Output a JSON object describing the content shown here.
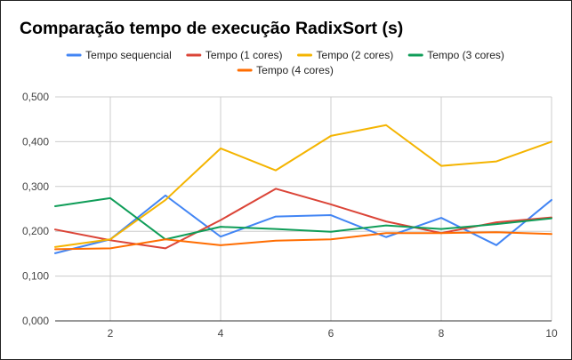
{
  "chart_data": {
    "type": "line",
    "title": "Comparação tempo de execução RadixSort (s)",
    "xlabel": "",
    "ylabel": "",
    "x": [
      1,
      2,
      3,
      4,
      5,
      6,
      7,
      8,
      9,
      10
    ],
    "xlim": [
      1,
      10
    ],
    "ylim": [
      0,
      0.5
    ],
    "xticks": [
      2,
      4,
      6,
      8,
      10
    ],
    "yticks": [
      0,
      0.1,
      0.2,
      0.3,
      0.4,
      0.5
    ],
    "ytick_labels": [
      "0,000",
      "0,100",
      "0,200",
      "0,300",
      "0,400",
      "0,500"
    ],
    "grid": true,
    "legend_position": "top",
    "series": [
      {
        "name": "Tempo sequencial",
        "color": "#4285f4",
        "values": [
          0.151,
          0.182,
          0.28,
          0.188,
          0.233,
          0.236,
          0.187,
          0.23,
          0.169,
          0.27
        ]
      },
      {
        "name": "Tempo (1 cores)",
        "color": "#db4437",
        "values": [
          0.204,
          0.18,
          0.162,
          0.225,
          0.295,
          0.26,
          0.222,
          0.196,
          0.22,
          0.231
        ]
      },
      {
        "name": "Tempo (2 cores)",
        "color": "#f4b400",
        "values": [
          0.165,
          0.182,
          0.27,
          0.385,
          0.336,
          0.413,
          0.437,
          0.346,
          0.356,
          0.4
        ]
      },
      {
        "name": "Tempo (3 cores)",
        "color": "#0f9d58",
        "values": [
          0.256,
          0.274,
          0.182,
          0.21,
          0.205,
          0.199,
          0.213,
          0.205,
          0.216,
          0.229
        ]
      },
      {
        "name": "Tempo (4 cores)",
        "color": "#ff6d01",
        "values": [
          0.16,
          0.162,
          0.182,
          0.169,
          0.179,
          0.182,
          0.196,
          0.196,
          0.198,
          0.194
        ]
      }
    ]
  }
}
